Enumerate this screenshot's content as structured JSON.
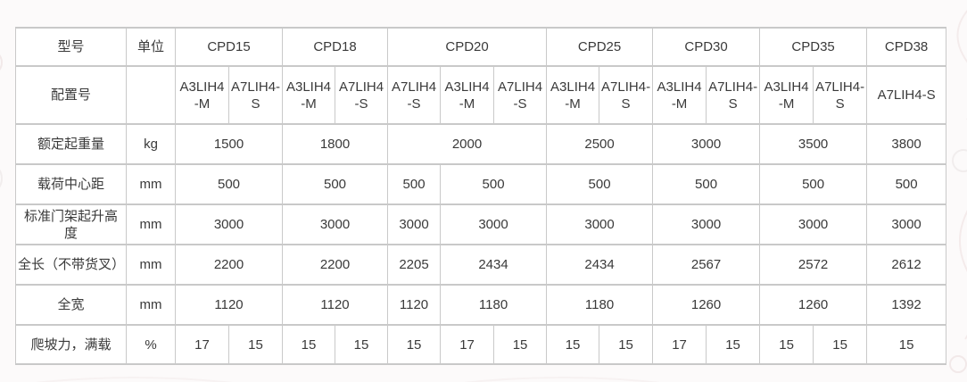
{
  "table": {
    "corner_header": "型号",
    "unit_header": "单位",
    "config_row_label": "配置号",
    "config_row_unit": "",
    "models": [
      {
        "name": "CPD15",
        "configs": [
          "A3LIH4-M",
          "A7LIH4-S"
        ]
      },
      {
        "name": "CPD18",
        "configs": [
          "A3LIH4-M",
          "A7LIH4-S"
        ]
      },
      {
        "name": "CPD20",
        "configs": [
          "A7LIH4-S",
          "A3LIH4-M",
          "A7LIH4-S"
        ]
      },
      {
        "name": "CPD25",
        "configs": [
          "A3LIH4-M",
          "A7LIH4-S"
        ]
      },
      {
        "name": "CPD30",
        "configs": [
          "A3LIH4-M",
          "A7LIH4-S"
        ]
      },
      {
        "name": "CPD35",
        "configs": [
          "A3LIH4-M",
          "A7LIH4-S"
        ]
      },
      {
        "name": "CPD38",
        "configs": [
          "A7LIH4-S"
        ]
      }
    ],
    "rows": [
      {
        "label": "额定起重量",
        "unit": "kg",
        "cells": [
          {
            "value": "1500",
            "span": 2
          },
          {
            "value": "1800",
            "span": 2
          },
          {
            "value": "2000",
            "span": 3
          },
          {
            "value": "2500",
            "span": 2
          },
          {
            "value": "3000",
            "span": 2
          },
          {
            "value": "3500",
            "span": 2
          },
          {
            "value": "3800",
            "span": 1
          }
        ]
      },
      {
        "label": "载荷中心距",
        "unit": "mm",
        "cells": [
          {
            "value": "500",
            "span": 2
          },
          {
            "value": "500",
            "span": 2
          },
          {
            "value": "500",
            "span": 1
          },
          {
            "value": "500",
            "span": 2
          },
          {
            "value": "500",
            "span": 2
          },
          {
            "value": "500",
            "span": 2
          },
          {
            "value": "500",
            "span": 2
          },
          {
            "value": "500",
            "span": 1
          }
        ]
      },
      {
        "label": "标准门架起升高度",
        "unit": "mm",
        "cells": [
          {
            "value": "3000",
            "span": 2
          },
          {
            "value": "3000",
            "span": 2
          },
          {
            "value": "3000",
            "span": 1
          },
          {
            "value": "3000",
            "span": 2
          },
          {
            "value": "3000",
            "span": 2
          },
          {
            "value": "3000",
            "span": 2
          },
          {
            "value": "3000",
            "span": 2
          },
          {
            "value": "3000",
            "span": 1
          }
        ]
      },
      {
        "label": "全长（不带货叉）",
        "unit": "mm",
        "cells": [
          {
            "value": "2200",
            "span": 2
          },
          {
            "value": "2200",
            "span": 2
          },
          {
            "value": "2205",
            "span": 1
          },
          {
            "value": "2434",
            "span": 2
          },
          {
            "value": "2434",
            "span": 2
          },
          {
            "value": "2567",
            "span": 2
          },
          {
            "value": "2572",
            "span": 2
          },
          {
            "value": "2612",
            "span": 1
          }
        ]
      },
      {
        "label": "全宽",
        "unit": "mm",
        "cells": [
          {
            "value": "1120",
            "span": 2
          },
          {
            "value": "1120",
            "span": 2
          },
          {
            "value": "1120",
            "span": 1
          },
          {
            "value": "1180",
            "span": 2
          },
          {
            "value": "1180",
            "span": 2
          },
          {
            "value": "1260",
            "span": 2
          },
          {
            "value": "1260",
            "span": 2
          },
          {
            "value": "1392",
            "span": 1
          }
        ]
      },
      {
        "label": "爬坡力，满载",
        "unit": "%",
        "cells": [
          {
            "value": "17",
            "span": 1
          },
          {
            "value": "15",
            "span": 1
          },
          {
            "value": "15",
            "span": 1
          },
          {
            "value": "15",
            "span": 1
          },
          {
            "value": "15",
            "span": 1
          },
          {
            "value": "17",
            "span": 1
          },
          {
            "value": "15",
            "span": 1
          },
          {
            "value": "15",
            "span": 1
          },
          {
            "value": "15",
            "span": 1
          },
          {
            "value": "17",
            "span": 1
          },
          {
            "value": "15",
            "span": 1
          },
          {
            "value": "15",
            "span": 1
          },
          {
            "value": "15",
            "span": 1
          },
          {
            "value": "15",
            "span": 1
          }
        ]
      }
    ]
  },
  "colors": {
    "border": "#c9c9c9",
    "text": "#3a3a3a",
    "table_background": "#ffffff",
    "page_background": "#fcfafa"
  }
}
